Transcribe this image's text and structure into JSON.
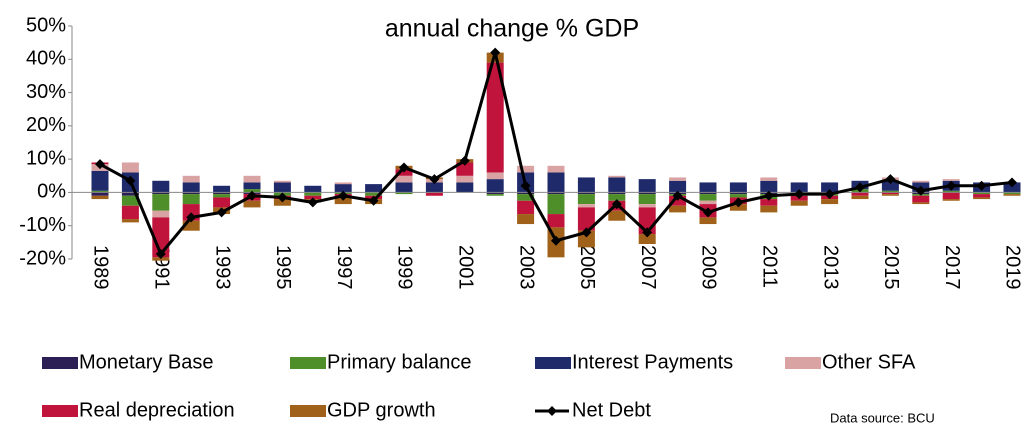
{
  "chart_data": {
    "type": "bar",
    "title": "annual change % GDP",
    "annotation": "Data source: BCU",
    "categories": [
      "1989",
      null,
      "1991",
      null,
      "1993",
      null,
      "1995",
      null,
      "1997",
      null,
      "1999",
      null,
      "2001",
      null,
      "2003",
      null,
      "2005",
      null,
      "2007",
      null,
      "2009",
      null,
      "2011",
      null,
      "2013",
      null,
      "2015",
      null,
      "2017",
      null,
      "2019"
    ],
    "ylim": [
      -20,
      50
    ],
    "yticks": [
      {
        "value": -20,
        "label": "-20%"
      },
      {
        "value": -10,
        "label": "-10%"
      },
      {
        "value": 0,
        "label": "0%"
      },
      {
        "value": 10,
        "label": "10%"
      },
      {
        "value": 20,
        "label": "20%"
      },
      {
        "value": 30,
        "label": "30%"
      },
      {
        "value": 40,
        "label": "40%"
      },
      {
        "value": 50,
        "label": "50%"
      }
    ],
    "series": [
      {
        "name": "Monetary Base",
        "color": "#2b1f55",
        "values": [
          -1,
          -1,
          -0.5,
          -0.5,
          -0.5,
          -0.5,
          0,
          0,
          0,
          0,
          0,
          0,
          0,
          -0.5,
          -0.5,
          -0.5,
          -0.5,
          -0.5,
          -0.5,
          -0.5,
          -0.5,
          -0.5,
          -0.5,
          -0.5,
          -0.5,
          0,
          0,
          -0.5,
          0,
          0,
          0
        ]
      },
      {
        "name": "Primary balance",
        "color": "#4f8f2a",
        "values": [
          0.5,
          -3,
          -5,
          -3,
          -1,
          1,
          -1,
          -1,
          -0.5,
          -1,
          -0.5,
          0,
          0,
          -0.5,
          -2,
          -6,
          -3,
          -2,
          -3,
          -0.5,
          -2,
          -1,
          -1.5,
          -0.5,
          -0.5,
          1,
          0.5,
          -0.5,
          0.5,
          -0.5,
          -0.5
        ]
      },
      {
        "name": "Interest Payments",
        "color": "#1f2a6b",
        "values": [
          6,
          6,
          3.5,
          3,
          2,
          2,
          3,
          2,
          2.5,
          2.5,
          3,
          3,
          3,
          4,
          6,
          6,
          4.5,
          4.5,
          4,
          3.5,
          3,
          3,
          3.5,
          3,
          3,
          2.5,
          3,
          3,
          3,
          3,
          3
        ]
      },
      {
        "name": "Other SFA",
        "color": "#d9a3a3",
        "values": [
          2,
          3,
          -2,
          2,
          0,
          2,
          0.5,
          0,
          0.5,
          0,
          2,
          1,
          2,
          2,
          2,
          2,
          -1,
          0.5,
          -1,
          1,
          -1,
          0,
          1,
          0,
          0,
          0,
          1,
          0.5,
          0.5,
          0,
          0
        ]
      },
      {
        "name": "Real depreciation",
        "color": "#c0143c",
        "values": [
          0.5,
          -4,
          -12,
          -5,
          -3,
          -2,
          -1,
          -1,
          -1,
          -1,
          2,
          -1,
          4,
          33,
          -4,
          -4,
          -7,
          -3,
          -8,
          -3,
          -4,
          -2,
          -2,
          -1.5,
          -1,
          -1,
          -0.5,
          -2,
          -2,
          -1,
          0
        ]
      },
      {
        "name": "GDP growth",
        "color": "#a0621a",
        "values": [
          -1,
          -1,
          -1,
          -3,
          -2,
          -2,
          -2,
          -1,
          -2,
          -1.5,
          1,
          0.5,
          1,
          3,
          -3,
          -9,
          -5,
          -3,
          -3,
          -2,
          -2,
          -2,
          -2,
          -1.5,
          -1.5,
          -1,
          -0.5,
          -0.5,
          -0.5,
          -0.5,
          -0.5
        ]
      },
      {
        "name": "Net Debt",
        "type": "line",
        "color": "#000000",
        "values": [
          8.5,
          3.5,
          -18.5,
          -7.5,
          -6,
          -1,
          -1.5,
          -3,
          -1,
          -2.5,
          7.5,
          4,
          9.5,
          42,
          2,
          -14.5,
          -12,
          -3.5,
          -12,
          -1,
          -6,
          -3,
          -1,
          -0.5,
          -0.5,
          1.5,
          4,
          0.5,
          2,
          2,
          3
        ]
      }
    ]
  }
}
